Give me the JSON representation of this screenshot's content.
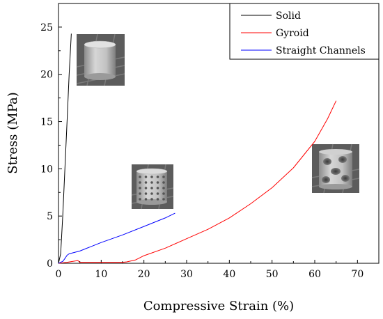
{
  "chart_data": {
    "type": "line",
    "xlabel": "Compressive Strain (%)",
    "ylabel": "Stress (MPa)",
    "xlim": [
      0,
      75
    ],
    "ylim": [
      0,
      27.5
    ],
    "xticks": [
      0,
      10,
      20,
      30,
      40,
      50,
      60,
      70
    ],
    "yticks": [
      0,
      5,
      10,
      15,
      20,
      25
    ],
    "grid": false,
    "legend_position": "top-right",
    "series": [
      {
        "name": "Solid",
        "color": "#000000",
        "x": [
          0,
          0.5,
          1.0,
          1.5,
          2.0,
          2.5,
          3.0
        ],
        "y": [
          0,
          1.0,
          5.0,
          10.0,
          15.0,
          20.0,
          24.3
        ]
      },
      {
        "name": "Gyroid",
        "color": "#ff0000",
        "x": [
          0,
          2,
          4,
          4.5,
          5,
          6,
          10,
          15,
          16,
          18,
          20,
          25,
          30,
          35,
          40,
          45,
          50,
          55,
          60,
          63,
          65
        ],
        "y": [
          0,
          0.1,
          0.25,
          0.3,
          0.1,
          0.1,
          0.1,
          0.1,
          0.15,
          0.35,
          0.8,
          1.6,
          2.6,
          3.6,
          4.8,
          6.3,
          8.0,
          10.1,
          12.9,
          15.3,
          17.2
        ]
      },
      {
        "name": "Straight Channels",
        "color": "#0000ff",
        "x": [
          0,
          0.5,
          1,
          1.5,
          2.0,
          2.5,
          5,
          10,
          15,
          20,
          25,
          27.3
        ],
        "y": [
          0,
          0.1,
          0.2,
          0.5,
          0.85,
          1.0,
          1.3,
          2.2,
          3.0,
          3.9,
          4.8,
          5.3
        ]
      }
    ],
    "insets": [
      {
        "name": "solid-cylinder-image"
      },
      {
        "name": "straight-channels-cylinder-image"
      },
      {
        "name": "gyroid-cylinder-image"
      }
    ]
  }
}
